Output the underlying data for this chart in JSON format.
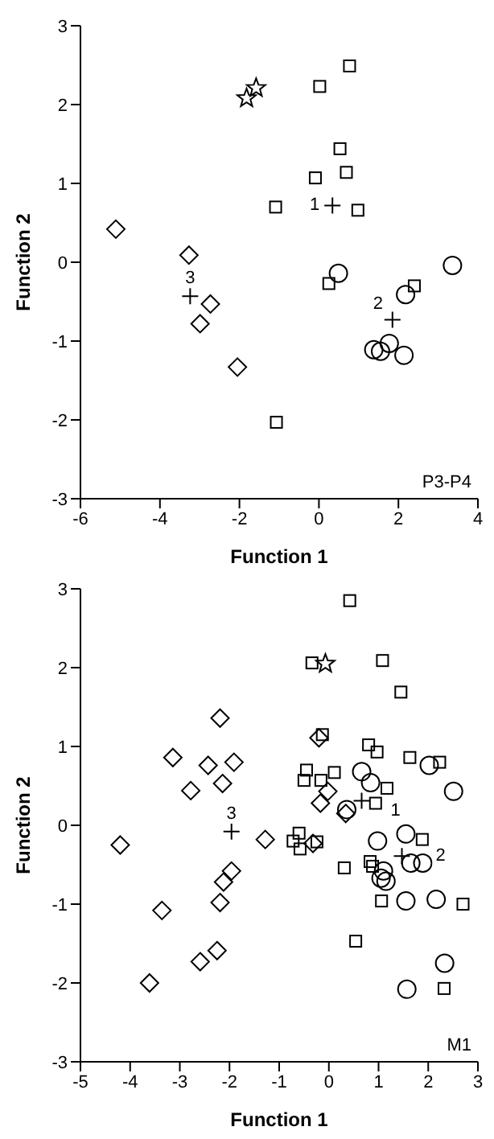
{
  "chart_data": [
    {
      "type": "scatter",
      "xlabel": "Function 1",
      "ylabel": "Function 2",
      "xlim": [
        -6,
        4
      ],
      "ylim": [
        -3,
        3
      ],
      "xticks": [
        -6,
        -4,
        -2,
        0,
        2,
        4
      ],
      "yticks": [
        -3,
        -2,
        -1,
        0,
        1,
        2,
        3
      ],
      "grid": false,
      "series": [
        {
          "marker": "diamond",
          "color": "#000000",
          "x": [
            -5.11,
            -3.27,
            -2.73,
            -2.99,
            -2.05
          ],
          "values": [
            0.42,
            0.09,
            -0.53,
            -0.78,
            -1.33
          ]
        },
        {
          "marker": "square",
          "color": "#000000",
          "x": [
            0.02,
            0.77,
            0.53,
            -0.09,
            0.69,
            -1.09,
            0.98,
            0.25,
            2.4,
            -1.07
          ],
          "values": [
            2.23,
            2.49,
            1.44,
            1.07,
            1.14,
            0.7,
            0.66,
            -0.27,
            -0.3,
            -2.03
          ]
        },
        {
          "marker": "circle",
          "color": "#000000",
          "x": [
            0.49,
            3.36,
            2.18,
            1.77,
            1.38,
            1.55,
            2.14
          ],
          "values": [
            -0.14,
            -0.04,
            -0.41,
            -1.03,
            -1.11,
            -1.13,
            -1.18
          ]
        },
        {
          "marker": "cross",
          "color": "#000000",
          "x": [
            0.34,
            1.85,
            -3.24
          ],
          "values": [
            0.72,
            -0.73,
            -0.43
          ]
        },
        {
          "marker": "star",
          "color": "#000000",
          "x": [
            -1.82,
            -1.58
          ],
          "values": [
            2.08,
            2.21
          ]
        }
      ],
      "annotations": [
        {
          "text": "1",
          "x": 0.34,
          "y": 0.72
        },
        {
          "text": "2",
          "x": 1.85,
          "y": -0.73
        },
        {
          "text": "3",
          "x": -3.24,
          "y": -0.43
        },
        "P3-P4"
      ]
    },
    {
      "type": "scatter",
      "xlabel": "Function 1",
      "ylabel": "Function 2",
      "xlim": [
        -5,
        3
      ],
      "ylim": [
        -3,
        3
      ],
      "xticks": [
        -5,
        -4,
        -3,
        -2,
        -1,
        0,
        1,
        2,
        3
      ],
      "yticks": [
        -3,
        -2,
        -1,
        0,
        1,
        2,
        3
      ],
      "grid": false,
      "series": [
        {
          "marker": "diamond",
          "color": "#000000",
          "x": [
            -2.19,
            -3.14,
            -2.43,
            -1.91,
            -2.78,
            -2.14,
            -0.2,
            -0.02,
            -0.17,
            0.34,
            -4.2,
            -1.28,
            -0.32,
            -3.36,
            -1.96,
            -2.12,
            -2.19,
            -2.25,
            -2.59,
            -3.61
          ],
          "values": [
            1.36,
            0.86,
            0.76,
            0.8,
            0.44,
            0.53,
            1.11,
            0.43,
            0.28,
            0.15,
            -0.25,
            -0.18,
            -0.23,
            -1.08,
            -0.58,
            -0.72,
            -0.98,
            -1.59,
            -1.73,
            -2.0
          ]
        },
        {
          "marker": "square",
          "color": "#000000",
          "x": [
            0.42,
            -0.34,
            1.08,
            1.45,
            -0.13,
            0.8,
            0.97,
            1.63,
            2.23,
            -0.45,
            -0.5,
            -0.16,
            0.11,
            1.17,
            0.94,
            -0.6,
            -0.72,
            -0.58,
            -0.24,
            1.88,
            0.31,
            0.83,
            0.88,
            1.06,
            2.7,
            0.54,
            2.32
          ],
          "values": [
            2.85,
            2.06,
            2.09,
            1.69,
            1.15,
            1.02,
            0.93,
            0.86,
            0.8,
            0.7,
            0.57,
            0.57,
            0.67,
            0.47,
            0.28,
            -0.1,
            -0.2,
            -0.3,
            -0.21,
            -0.18,
            -0.54,
            -0.46,
            -0.52,
            -0.96,
            -1.0,
            -1.47,
            -2.07
          ]
        },
        {
          "marker": "circle",
          "color": "#000000",
          "x": [
            2.02,
            2.51,
            0.66,
            0.84,
            0.36,
            1.55,
            0.98,
            1.65,
            1.89,
            1.1,
            1.05,
            1.15,
            1.55,
            2.16,
            2.33,
            1.57
          ],
          "values": [
            0.76,
            0.43,
            0.68,
            0.54,
            0.2,
            -0.11,
            -0.2,
            -0.48,
            -0.48,
            -0.58,
            -0.67,
            -0.71,
            -0.96,
            -0.94,
            -1.75,
            -2.08
          ]
        },
        {
          "marker": "cross",
          "color": "#000000",
          "x": [
            0.66,
            1.47,
            -1.96
          ],
          "values": [
            0.31,
            -0.39,
            -0.08
          ]
        },
        {
          "marker": "star",
          "color": "#000000",
          "x": [
            -0.07
          ],
          "values": [
            2.05
          ]
        }
      ],
      "annotations": [
        {
          "text": "1",
          "x": 0.66,
          "y": 0.31
        },
        {
          "text": "2",
          "x": 1.47,
          "y": -0.39
        },
        {
          "text": "3",
          "x": -1.96,
          "y": -0.08
        },
        "M1"
      ]
    }
  ]
}
